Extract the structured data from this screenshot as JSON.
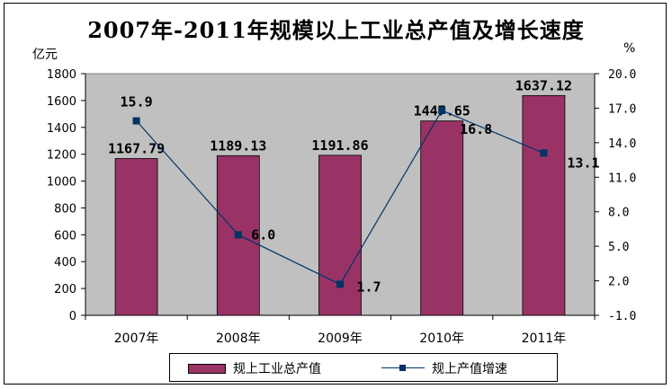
{
  "chart_data": {
    "type": "bar",
    "title": "2007年-2011年规模以上工业总产值及增长速度",
    "left_unit": "亿元",
    "right_unit": "%",
    "categories": [
      "2007年",
      "2008年",
      "2009年",
      "2010年",
      "2011年"
    ],
    "series": [
      {
        "name": "规上工业总产值",
        "type": "bar",
        "axis": "left",
        "values": [
          1167.79,
          1189.13,
          1191.86,
          1447.65,
          1637.12
        ],
        "labels": [
          "1167.79",
          "1189.13",
          "1191.86",
          "1447.65",
          "1637.12"
        ],
        "color": "#993366"
      },
      {
        "name": "规上产值增速",
        "type": "line",
        "axis": "right",
        "values": [
          15.9,
          6.0,
          1.7,
          16.8,
          13.1
        ],
        "labels": [
          "15.9",
          "6.0",
          "1.7",
          "16.8",
          "13.1"
        ],
        "color": "#003366"
      }
    ],
    "ylim_left": [
      0,
      1800
    ],
    "yticks_left": [
      "0",
      "200",
      "400",
      "600",
      "800",
      "1000",
      "1200",
      "1400",
      "1600",
      "1800"
    ],
    "ylim_right": [
      -1.0,
      20.0
    ],
    "yticks_right": [
      "-1.0",
      "2.0",
      "5.0",
      "8.0",
      "11.0",
      "14.0",
      "17.0",
      "20.0"
    ],
    "plot_background": "#c0c0c0",
    "grid": false,
    "legend_position": "bottom"
  }
}
